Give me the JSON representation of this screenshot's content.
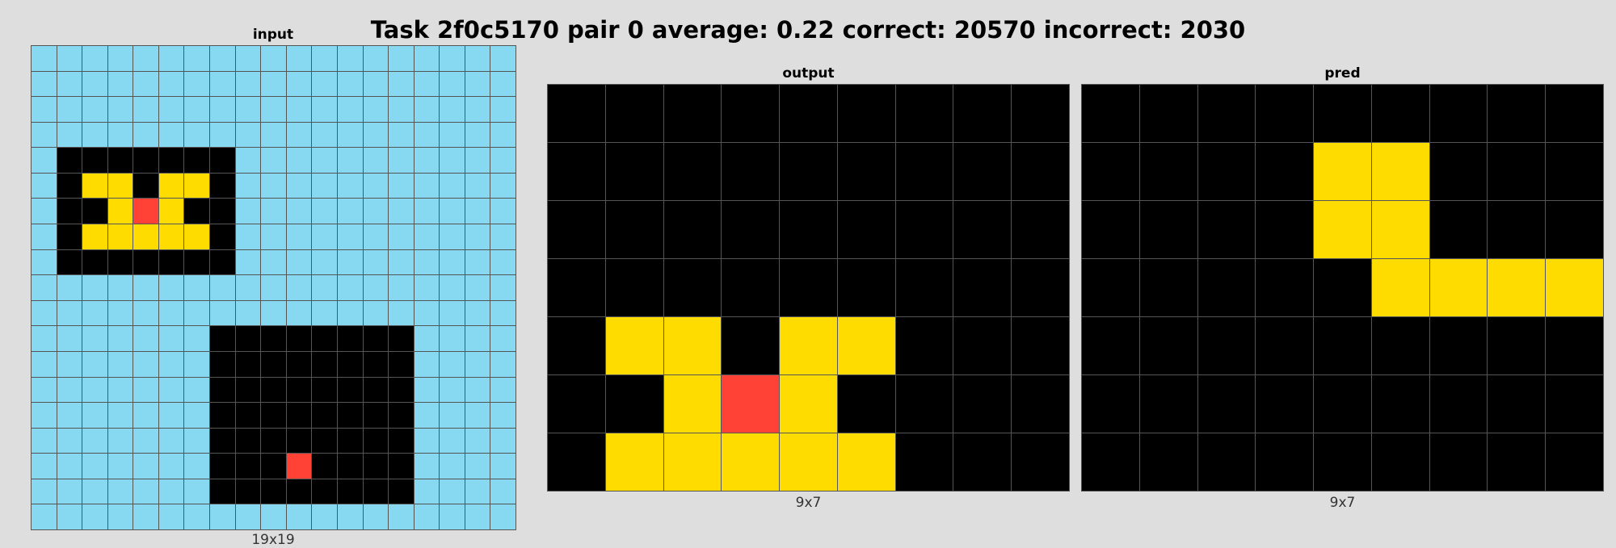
{
  "title": "Task 2f0c5170 pair 0 average: 0.22 correct: 20570 incorrect: 2030",
  "palette": {
    "0": "#000000",
    "2": "#ff4136",
    "4": "#ffdc00",
    "8": "#87d8f1"
  },
  "panels": {
    "input": {
      "title": "input",
      "size_label": "19x19",
      "grid": [
        [
          8,
          8,
          8,
          8,
          8,
          8,
          8,
          8,
          8,
          8,
          8,
          8,
          8,
          8,
          8,
          8,
          8,
          8,
          8
        ],
        [
          8,
          8,
          8,
          8,
          8,
          8,
          8,
          8,
          8,
          8,
          8,
          8,
          8,
          8,
          8,
          8,
          8,
          8,
          8
        ],
        [
          8,
          8,
          8,
          8,
          8,
          8,
          8,
          8,
          8,
          8,
          8,
          8,
          8,
          8,
          8,
          8,
          8,
          8,
          8
        ],
        [
          8,
          8,
          8,
          8,
          8,
          8,
          8,
          8,
          8,
          8,
          8,
          8,
          8,
          8,
          8,
          8,
          8,
          8,
          8
        ],
        [
          8,
          0,
          0,
          0,
          0,
          0,
          0,
          0,
          8,
          8,
          8,
          8,
          8,
          8,
          8,
          8,
          8,
          8,
          8
        ],
        [
          8,
          0,
          4,
          4,
          0,
          4,
          4,
          0,
          8,
          8,
          8,
          8,
          8,
          8,
          8,
          8,
          8,
          8,
          8
        ],
        [
          8,
          0,
          0,
          4,
          2,
          4,
          0,
          0,
          8,
          8,
          8,
          8,
          8,
          8,
          8,
          8,
          8,
          8,
          8
        ],
        [
          8,
          0,
          4,
          4,
          4,
          4,
          4,
          0,
          8,
          8,
          8,
          8,
          8,
          8,
          8,
          8,
          8,
          8,
          8
        ],
        [
          8,
          0,
          0,
          0,
          0,
          0,
          0,
          0,
          8,
          8,
          8,
          8,
          8,
          8,
          8,
          8,
          8,
          8,
          8
        ],
        [
          8,
          8,
          8,
          8,
          8,
          8,
          8,
          8,
          8,
          8,
          8,
          8,
          8,
          8,
          8,
          8,
          8,
          8,
          8
        ],
        [
          8,
          8,
          8,
          8,
          8,
          8,
          8,
          8,
          8,
          8,
          8,
          8,
          8,
          8,
          8,
          8,
          8,
          8,
          8
        ],
        [
          8,
          8,
          8,
          8,
          8,
          8,
          8,
          0,
          0,
          0,
          0,
          0,
          0,
          0,
          0,
          8,
          8,
          8,
          8
        ],
        [
          8,
          8,
          8,
          8,
          8,
          8,
          8,
          0,
          0,
          0,
          0,
          0,
          0,
          0,
          0,
          8,
          8,
          8,
          8
        ],
        [
          8,
          8,
          8,
          8,
          8,
          8,
          8,
          0,
          0,
          0,
          0,
          0,
          0,
          0,
          0,
          8,
          8,
          8,
          8
        ],
        [
          8,
          8,
          8,
          8,
          8,
          8,
          8,
          0,
          0,
          0,
          0,
          0,
          0,
          0,
          0,
          8,
          8,
          8,
          8
        ],
        [
          8,
          8,
          8,
          8,
          8,
          8,
          8,
          0,
          0,
          0,
          0,
          0,
          0,
          0,
          0,
          8,
          8,
          8,
          8
        ],
        [
          8,
          8,
          8,
          8,
          8,
          8,
          8,
          0,
          0,
          0,
          2,
          0,
          0,
          0,
          0,
          8,
          8,
          8,
          8
        ],
        [
          8,
          8,
          8,
          8,
          8,
          8,
          8,
          0,
          0,
          0,
          0,
          0,
          0,
          0,
          0,
          8,
          8,
          8,
          8
        ],
        [
          8,
          8,
          8,
          8,
          8,
          8,
          8,
          8,
          8,
          8,
          8,
          8,
          8,
          8,
          8,
          8,
          8,
          8,
          8
        ]
      ]
    },
    "output": {
      "title": "output",
      "size_label": "9x7",
      "grid": [
        [
          0,
          0,
          0,
          0,
          0,
          0,
          0,
          0,
          0
        ],
        [
          0,
          0,
          0,
          0,
          0,
          0,
          0,
          0,
          0
        ],
        [
          0,
          0,
          0,
          0,
          0,
          0,
          0,
          0,
          0
        ],
        [
          0,
          0,
          0,
          0,
          0,
          0,
          0,
          0,
          0
        ],
        [
          0,
          4,
          4,
          0,
          4,
          4,
          0,
          0,
          0
        ],
        [
          0,
          0,
          4,
          2,
          4,
          0,
          0,
          0,
          0
        ],
        [
          0,
          4,
          4,
          4,
          4,
          4,
          0,
          0,
          0
        ]
      ]
    },
    "pred": {
      "title": "pred",
      "size_label": "9x7",
      "grid": [
        [
          0,
          0,
          0,
          0,
          0,
          0,
          0,
          0,
          0
        ],
        [
          0,
          0,
          0,
          0,
          4,
          4,
          0,
          0,
          0
        ],
        [
          0,
          0,
          0,
          0,
          4,
          4,
          0,
          0,
          0
        ],
        [
          0,
          0,
          0,
          0,
          0,
          4,
          4,
          4,
          4
        ],
        [
          0,
          0,
          0,
          0,
          0,
          0,
          0,
          0,
          0
        ],
        [
          0,
          0,
          0,
          0,
          0,
          0,
          0,
          0,
          0
        ],
        [
          0,
          0,
          0,
          0,
          0,
          0,
          0,
          0,
          0
        ]
      ]
    }
  }
}
